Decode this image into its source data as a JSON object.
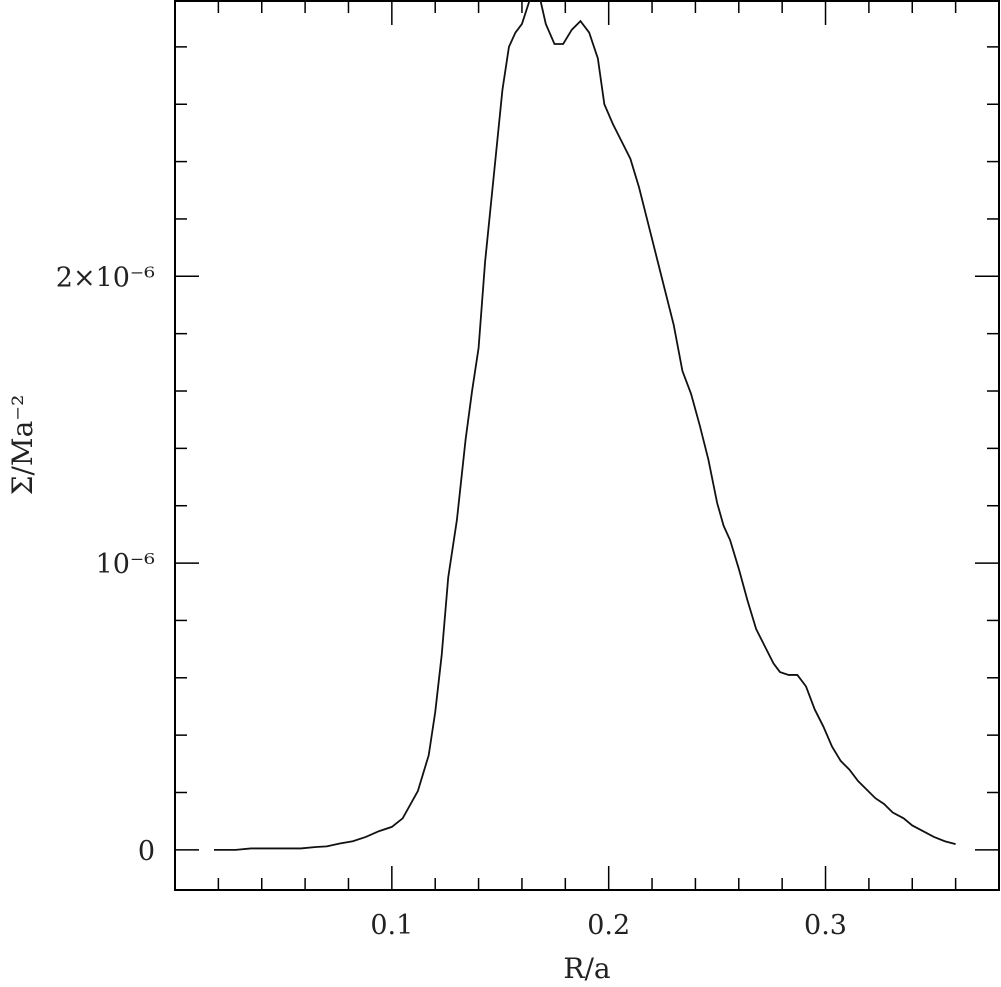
{
  "chart_data": {
    "type": "line",
    "xlabel": "R/a",
    "ylabel": "Σ/Ma⁻²",
    "xlim": [
      0.0,
      0.38
    ],
    "ylim": [
      -1.4e-07,
      2.96e-06
    ],
    "x_ticks": [
      {
        "value": 0.1,
        "label": "0.1"
      },
      {
        "value": 0.2,
        "label": "0.2"
      },
      {
        "value": 0.3,
        "label": "0.3"
      }
    ],
    "x_minor_step": 0.02,
    "y_ticks": [
      {
        "value": 0,
        "label": "0"
      },
      {
        "value": 1e-06,
        "label": "10⁻⁶"
      },
      {
        "value": 2e-06,
        "label": "2×10⁻⁶"
      }
    ],
    "y_minor_step": 2e-07,
    "grid": false,
    "series": [
      {
        "x": [
          0.018,
          0.028,
          0.035,
          0.042,
          0.05,
          0.058,
          0.065,
          0.07,
          0.076,
          0.082,
          0.088,
          0.094,
          0.1,
          0.105,
          0.112,
          0.117,
          0.12,
          0.123,
          0.126,
          0.13,
          0.134,
          0.137,
          0.14,
          0.143,
          0.147,
          0.151,
          0.154,
          0.157,
          0.16,
          0.163,
          0.166,
          0.168,
          0.171,
          0.175,
          0.179,
          0.183,
          0.187,
          0.191,
          0.195,
          0.198,
          0.202,
          0.206,
          0.21,
          0.214,
          0.218,
          0.222,
          0.226,
          0.23,
          0.234,
          0.238,
          0.242,
          0.246,
          0.25,
          0.253,
          0.256,
          0.26,
          0.264,
          0.268,
          0.272,
          0.276,
          0.279,
          0.283,
          0.287,
          0.291,
          0.295,
          0.299,
          0.303,
          0.307,
          0.311,
          0.315,
          0.319,
          0.323,
          0.327,
          0.331,
          0.336,
          0.34,
          0.345,
          0.35,
          0.355,
          0.36
        ],
        "y": [
          0.0,
          0.0,
          5e-09,
          5e-09,
          5e-09,
          5e-09,
          1e-08,
          1.2e-08,
          2.2e-08,
          3e-08,
          4.5e-08,
          6.5e-08,
          8e-08,
          1.1e-07,
          2.05e-07,
          3.3e-07,
          4.8e-07,
          6.8e-07,
          9.5e-07,
          1.15e-06,
          1.43e-06,
          1.6e-06,
          1.75e-06,
          2.05e-06,
          2.35e-06,
          2.65e-06,
          2.8e-06,
          2.85e-06,
          2.88e-06,
          2.95e-06,
          3.02e-06,
          2.98e-06,
          2.88e-06,
          2.81e-06,
          2.81e-06,
          2.86e-06,
          2.89e-06,
          2.85e-06,
          2.76e-06,
          2.6e-06,
          2.53e-06,
          2.47e-06,
          2.41e-06,
          2.31e-06,
          2.19e-06,
          2.07e-06,
          1.95e-06,
          1.83e-06,
          1.67e-06,
          1.59e-06,
          1.48e-06,
          1.36e-06,
          1.21e-06,
          1.13e-06,
          1.08e-06,
          9.8e-07,
          8.7e-07,
          7.7e-07,
          7.1e-07,
          6.5e-07,
          6.2e-07,
          6.1e-07,
          6.1e-07,
          5.7e-07,
          4.9e-07,
          4.3e-07,
          3.6e-07,
          3.1e-07,
          2.8e-07,
          2.4e-07,
          2.1e-07,
          1.8e-07,
          1.6e-07,
          1.3e-07,
          1.1e-07,
          8.5e-08,
          6.5e-08,
          4.5e-08,
          3e-08,
          2e-08
        ]
      }
    ]
  }
}
